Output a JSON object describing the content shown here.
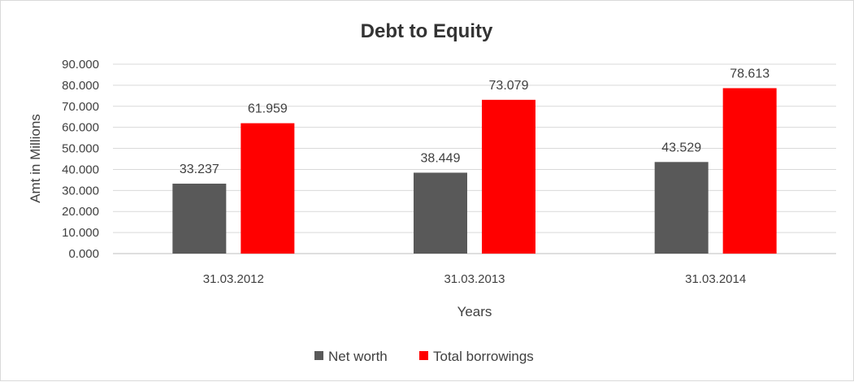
{
  "chart_data": {
    "type": "bar",
    "title": "Debt to Equity",
    "xlabel": "Years",
    "ylabel": "Amt in Millions",
    "categories": [
      "31.03.2012",
      "31.03.2013",
      "31.03.2014"
    ],
    "series": [
      {
        "name": "Net worth",
        "values": [
          33.237,
          38.449,
          43.529
        ],
        "color": "#595959"
      },
      {
        "name": "Total borrowings",
        "values": [
          61.959,
          73.079,
          78.613
        ],
        "color": "#ff0000"
      }
    ],
    "ylim": [
      0,
      90
    ],
    "yticks": [
      "0.000",
      "10.000",
      "20.000",
      "30.000",
      "40.000",
      "50.000",
      "60.000",
      "70.000",
      "80.000",
      "90.000"
    ],
    "data_labels": [
      [
        "33.237",
        "38.449",
        "43.529"
      ],
      [
        "61.959",
        "73.079",
        "78.613"
      ]
    ],
    "grid": true,
    "legend_position": "bottom"
  }
}
